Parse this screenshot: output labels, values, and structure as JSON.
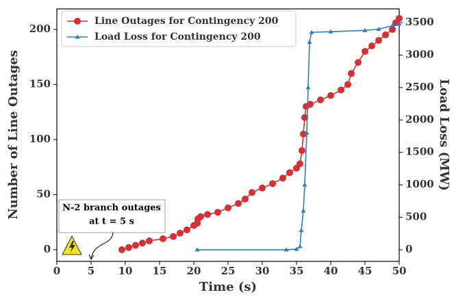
{
  "chart_data": {
    "type": "line",
    "xlabel": "Time (s)",
    "ylabel": "Number of Line Outages",
    "y2label": "Load Loss (MW)",
    "xlim": [
      0,
      50
    ],
    "ylim": [
      -10.6,
      218.6
    ],
    "y2lim": [
      -179,
      3711
    ],
    "xticks": [
      0,
      5,
      10,
      15,
      20,
      25,
      30,
      35,
      40,
      45,
      50
    ],
    "yticks": [
      0,
      50,
      100,
      150,
      200
    ],
    "y2ticks": [
      0,
      500,
      1000,
      1500,
      2000,
      2500,
      3000,
      3500
    ],
    "legend": "upper left",
    "annotation": {
      "lines": [
        "N-2 branch outages",
        "at t = 5 s"
      ],
      "x": 5
    },
    "series": [
      {
        "name": "Line Outages for Contingency 200",
        "color": "#d62f34",
        "marker": "circle",
        "axis": "y",
        "x": [
          9.5,
          10.5,
          11.5,
          12.5,
          13.5,
          15.5,
          17,
          18,
          19,
          20,
          20.5,
          20.6,
          21,
          22,
          23.5,
          25,
          26.5,
          27.5,
          28.5,
          30,
          31.5,
          33,
          34,
          35,
          35.5,
          35.8,
          36,
          36.2,
          36.4,
          37,
          38.5,
          40,
          41.5,
          42.5,
          43,
          44,
          45,
          46,
          47,
          48,
          49,
          49.5,
          50
        ],
        "values": [
          0,
          2,
          4,
          6,
          8,
          10,
          12,
          15,
          18,
          22,
          24,
          28,
          30,
          32,
          34,
          38,
          42,
          46,
          52,
          56,
          60,
          65,
          70,
          74,
          78,
          90,
          105,
          120,
          130,
          132,
          136,
          140,
          145,
          150,
          160,
          170,
          180,
          185,
          190,
          195,
          200,
          206,
          210
        ]
      },
      {
        "name": "Load Loss for Contingency 200",
        "color": "#2e7dbf",
        "marker": "triangle",
        "axis": "y2",
        "x": [
          20.5,
          33.5,
          35,
          35.5,
          35.7,
          36,
          36.2,
          36.5,
          36.7,
          36.9,
          37.2,
          40,
          45,
          47,
          49,
          50
        ],
        "values": [
          0,
          0,
          10,
          50,
          300,
          600,
          1000,
          1800,
          2500,
          3200,
          3350,
          3360,
          3380,
          3400,
          3450,
          3480
        ]
      }
    ]
  }
}
